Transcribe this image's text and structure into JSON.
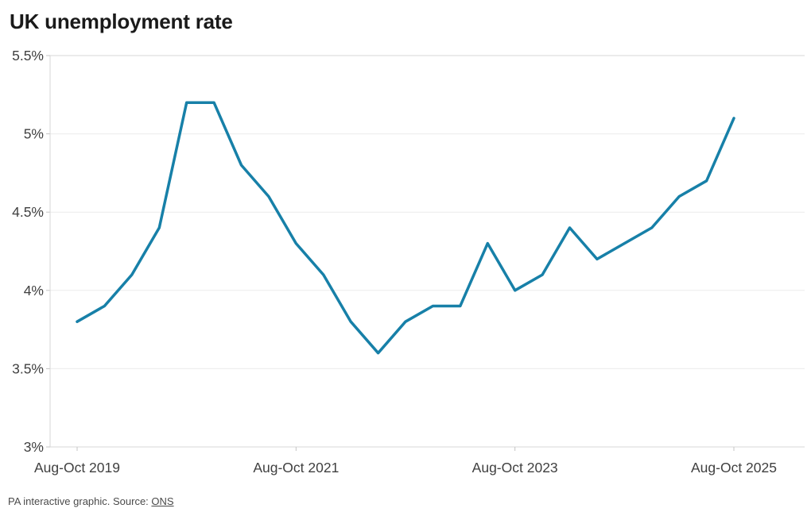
{
  "header": {
    "title": "UK unemployment rate"
  },
  "footer": {
    "credit": "PA interactive graphic. Source: ",
    "source_link": "ONS"
  },
  "colors": {
    "line": "#1780a8",
    "title": "#1a1a1a",
    "axis_label": "#404040",
    "gridline": "#ececec",
    "border": "#d7d7d7",
    "tick": "#c4c4c4",
    "footer_text": "#4a4a4a"
  },
  "chart_data": {
    "type": "line",
    "title": "UK unemployment rate",
    "unit": "%",
    "series": [
      {
        "name": "UK unemployment rate",
        "values": [
          3.8,
          3.9,
          4.1,
          4.4,
          5.2,
          5.2,
          4.8,
          4.6,
          4.3,
          4.1,
          3.8,
          3.6,
          3.8,
          3.9,
          3.9,
          4.3,
          4.0,
          4.1,
          4.4,
          4.2,
          4.3,
          4.4,
          4.6,
          4.7,
          5.1
        ]
      }
    ],
    "x_tick_labels": [
      {
        "index": 0,
        "label": "Aug-Oct 2019"
      },
      {
        "index": 8,
        "label": "Aug-Oct 2021"
      },
      {
        "index": 16,
        "label": "Aug-Oct 2023"
      },
      {
        "index": 24,
        "label": "Aug-Oct 2025"
      }
    ],
    "y_ticks": [
      3,
      3.5,
      4,
      4.5,
      5,
      5.5
    ],
    "y_tick_labels": [
      "3%",
      "3.5%",
      "4%",
      "4.5%",
      "5%",
      "5.5%"
    ],
    "ylim": [
      3,
      5.5
    ],
    "grid": "horizontal",
    "legend": "none"
  }
}
